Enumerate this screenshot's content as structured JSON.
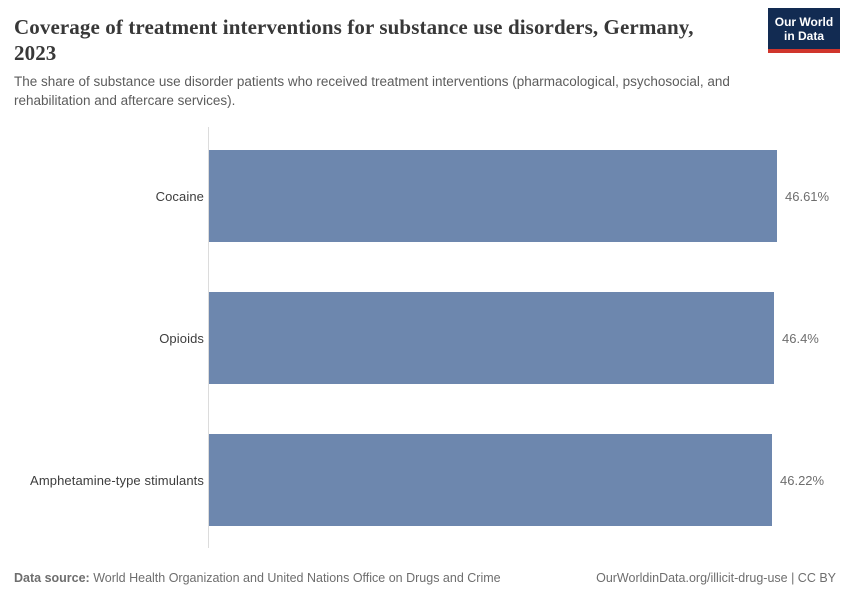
{
  "header": {
    "logo_line1": "Our World",
    "logo_line2": "in Data",
    "logo_bg_color": "#122b52",
    "logo_accent_color": "#d0352c"
  },
  "chart_data": {
    "type": "bar",
    "orientation": "horizontal",
    "title": "Coverage of treatment interventions for substance use disorders, Germany, 2023",
    "subtitle": "The share of substance use disorder patients who received treatment interventions (pharmacological, psychosocial, and rehabilitation and aftercare services).",
    "categories": [
      "Cocaine",
      "Opioids",
      "Amphetamine-type stimulants"
    ],
    "values": [
      46.61,
      46.4,
      46.22
    ],
    "value_labels": [
      "46.61%",
      "46.4%",
      "46.22%"
    ],
    "bar_color": "#6d87ae",
    "axis_line_color": "#dcdcdc",
    "xlim": [
      0,
      46.61
    ],
    "grid": false,
    "legend": "none"
  },
  "footer": {
    "source_label": "Data source:",
    "source_text": " World Health Organization and United Nations Office on Drugs and Crime",
    "credit": "OurWorldinData.org/illicit-drug-use | CC BY"
  }
}
